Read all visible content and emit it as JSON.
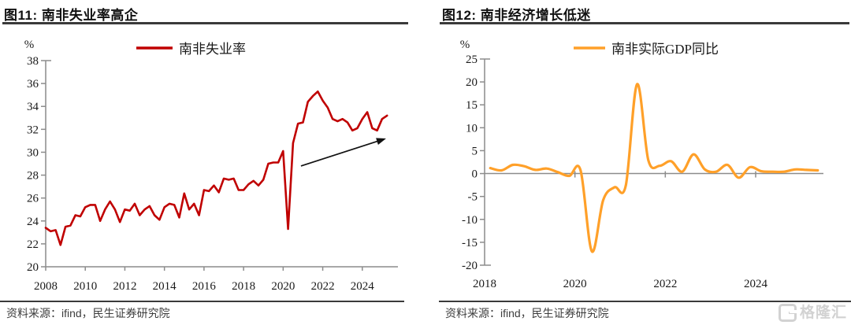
{
  "panels": [
    {
      "title": "图11: 南非失业率高企",
      "source": "资料来源：ifind，民生证券研究院"
    },
    {
      "title": "图12: 南非经济增长低迷",
      "source": "资料来源：ifind，民生证券研究院"
    }
  ],
  "watermark": {
    "text": "格隆汇"
  },
  "colors": {
    "unemployment_line": "#C00000",
    "gdp_line": "#FFA029",
    "axis": "#8C8C8C",
    "rule": "#3A3A3A",
    "arrow": "#111111"
  },
  "chart_data": [
    {
      "type": "line",
      "title": "图11: 南非失业率高企",
      "legend": "南非失业率",
      "legend_position": "top",
      "color": "#C00000",
      "smooth": false,
      "ylabel": "%",
      "xlabel": "",
      "grid": false,
      "zero_line": false,
      "ylim": [
        20,
        38
      ],
      "yticks": [
        38,
        36,
        34,
        32,
        30,
        28,
        26,
        24,
        22,
        20
      ],
      "xlim": [
        2008,
        2025.8
      ],
      "xticks": [
        2008,
        2010,
        2012,
        2014,
        2016,
        2018,
        2020,
        2022,
        2024
      ],
      "x_unit": "quarter",
      "x_start": 2008.0,
      "x_step": 0.25,
      "values": [
        23.4,
        23.1,
        23.2,
        21.9,
        23.5,
        23.6,
        24.5,
        24.4,
        25.2,
        25.4,
        25.4,
        24.0,
        25.0,
        25.7,
        25.0,
        23.9,
        25.0,
        24.9,
        25.5,
        24.5,
        25.0,
        25.3,
        24.5,
        24.1,
        25.2,
        25.5,
        25.4,
        24.3,
        26.4,
        25.0,
        25.5,
        24.5,
        26.7,
        26.6,
        27.1,
        26.5,
        27.7,
        27.6,
        27.7,
        26.7,
        26.7,
        27.2,
        27.5,
        27.1,
        27.6,
        29.0,
        29.1,
        29.1,
        30.1,
        23.3,
        30.8,
        32.5,
        32.6,
        34.4,
        34.9,
        35.3,
        34.5,
        33.9,
        32.9,
        32.7,
        32.9,
        32.6,
        31.9,
        32.1,
        32.9,
        33.5,
        32.1,
        31.9,
        32.9,
        33.2
      ],
      "annotation_arrow": {
        "from": [
          2020.9,
          28.8
        ],
        "to": [
          2025.2,
          31.2
        ]
      }
    },
    {
      "type": "line",
      "title": "图12: 南非经济增长低迷",
      "legend": "南非实际GDP同比",
      "legend_position": "top",
      "color": "#FFA029",
      "smooth": true,
      "ylabel": "%",
      "xlabel": "",
      "grid": false,
      "zero_line": true,
      "ylim": [
        -20,
        25
      ],
      "yticks": [
        25,
        20,
        15,
        10,
        5,
        0,
        -5,
        -10,
        -15,
        -20
      ],
      "xlim": [
        2018,
        2025.5
      ],
      "xticks": [
        2018,
        2020,
        2022,
        2024
      ],
      "x_unit": "quarter",
      "x_start": 2018.125,
      "x_step": 0.25,
      "values": [
        1.2,
        0.7,
        1.9,
        1.6,
        0.8,
        1.1,
        0.3,
        -0.5,
        0.7,
        -17.0,
        -5.8,
        -3.0,
        -2.6,
        19.5,
        2.9,
        1.7,
        2.7,
        0.4,
        4.2,
        0.9,
        0.4,
        1.9,
        -0.9,
        1.4,
        0.5,
        0.4,
        0.4,
        0.9,
        0.8,
        0.7
      ]
    }
  ]
}
